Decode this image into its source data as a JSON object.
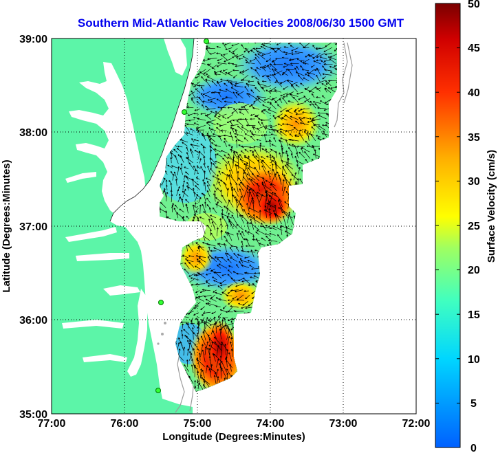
{
  "title": "Southern Mid-Atlantic Raw Velocities 2008/06/30 1500 GMT",
  "chart_data": {
    "type": "heatmap",
    "xlabel": "Longitude (Degrees:Minutes)",
    "ylabel": "Latitude (Degrees:Minutes)",
    "x_ticks": [
      "77:00",
      "76:00",
      "75:00",
      "74:00",
      "73:00",
      "72:00"
    ],
    "y_ticks": [
      "39:00",
      "38:00",
      "37:00",
      "36:00",
      "35:00"
    ],
    "xlim": [
      -77,
      -72
    ],
    "ylim": [
      35,
      39
    ],
    "grid": true,
    "colorbar": {
      "label": "Surface Velocity (cm/s)",
      "ticks": [
        "50",
        "45",
        "40",
        "35",
        "30",
        "25",
        "20",
        "15",
        "10",
        "5",
        "0"
      ],
      "range": [
        0,
        50
      ]
    },
    "colors": {
      "land": "#5cf5a8",
      "water": "#ffffff",
      "grid": "#000000"
    }
  }
}
